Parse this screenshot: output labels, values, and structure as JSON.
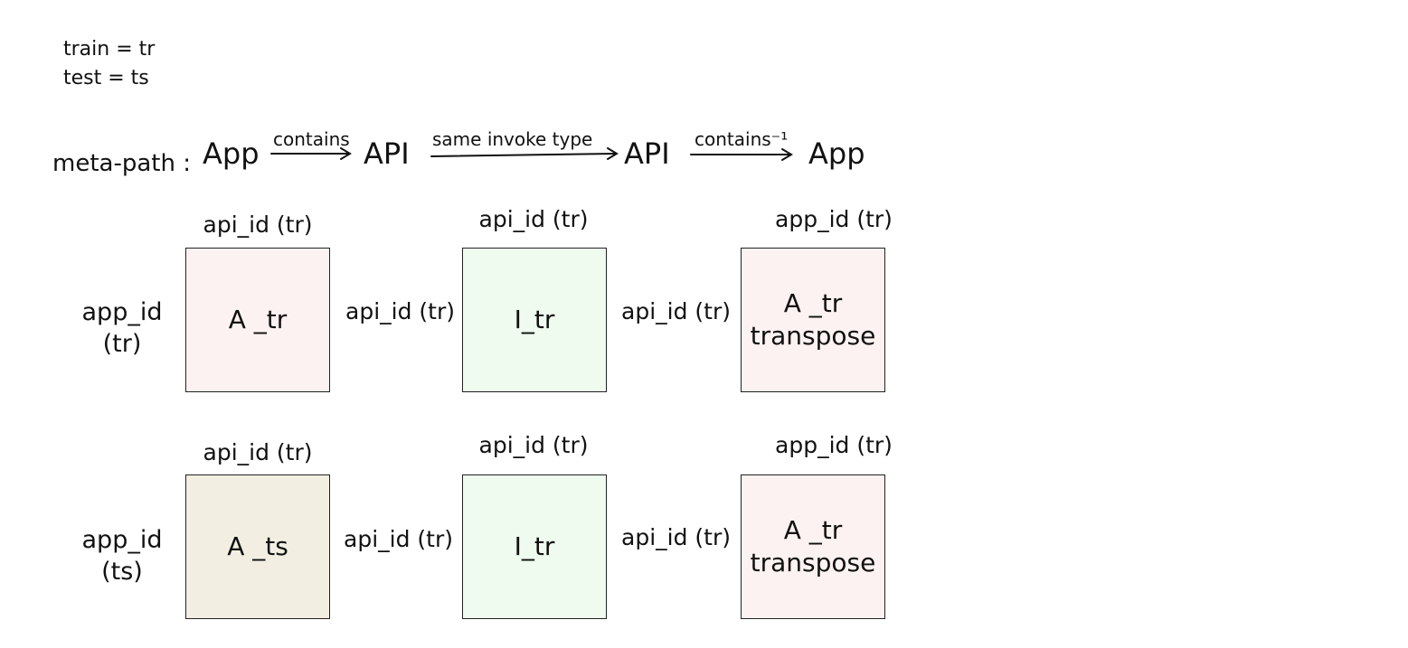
{
  "legend": {
    "line1": "train = tr",
    "line2": "test = ts"
  },
  "meta_path": {
    "label": "meta-path :",
    "nodes": [
      "App",
      "API",
      "API",
      "App"
    ],
    "edges": [
      "contains",
      "same invoke type",
      "contains⁻¹"
    ]
  },
  "rows": [
    {
      "row_label": "app_id\n(tr)",
      "col_labels": [
        "api_id (tr)",
        "api_id (tr)",
        "app_id (tr)"
      ],
      "between_labels": [
        "api_id (tr)",
        "api_id (tr)"
      ],
      "boxes": [
        "A _tr",
        "I_tr",
        "A _tr\ntranspose"
      ],
      "box_colors": [
        "#fcf2f1",
        "#eefbee",
        "#fcf2f1"
      ]
    },
    {
      "row_label": "app_id\n(ts)",
      "col_labels": [
        "api_id (tr)",
        "api_id (tr)",
        "app_id (tr)"
      ],
      "between_labels": [
        "api_id (tr)",
        "api_id (tr)"
      ],
      "boxes": [
        "A _ts",
        "I_tr",
        "A _tr\ntranspose"
      ],
      "box_colors": [
        "#f2efe2",
        "#eefbee",
        "#fcf2f1"
      ]
    }
  ]
}
